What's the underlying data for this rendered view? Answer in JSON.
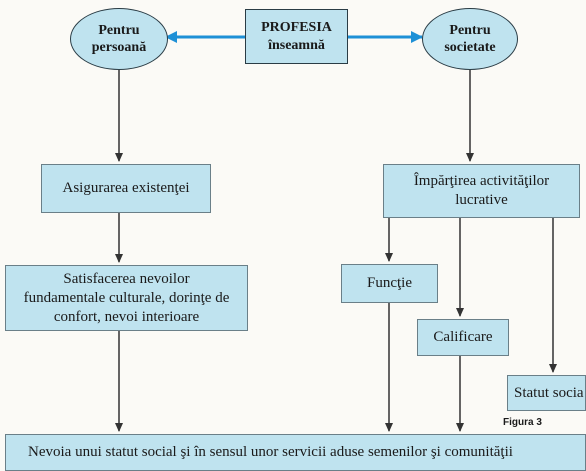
{
  "diagram": {
    "center": "PROFESIA\nînseamnă",
    "left_oval": "Pentru\npersoană",
    "right_oval": "Pentru\nsocietate",
    "left_box1": "Asigurarea existenţei",
    "left_box2": "Satisfacerea nevoilor\nfundamentale culturale, dorinţe de\nconfort, nevoi interioare",
    "right_box1": "Împărţirea activităţilor\nlucrative",
    "functie": "Funcţie",
    "calificare": "Calificare",
    "statut": "Statut socia",
    "bottom": "Nevoia unui statut social şi în sensul unor servicii aduse semenilor şi comunităţii",
    "caption": "Figura 3"
  },
  "colors": {
    "box_fill": "#bfe3ef",
    "arrow_blue": "#1e90d6",
    "arrow_dark": "#333333"
  }
}
